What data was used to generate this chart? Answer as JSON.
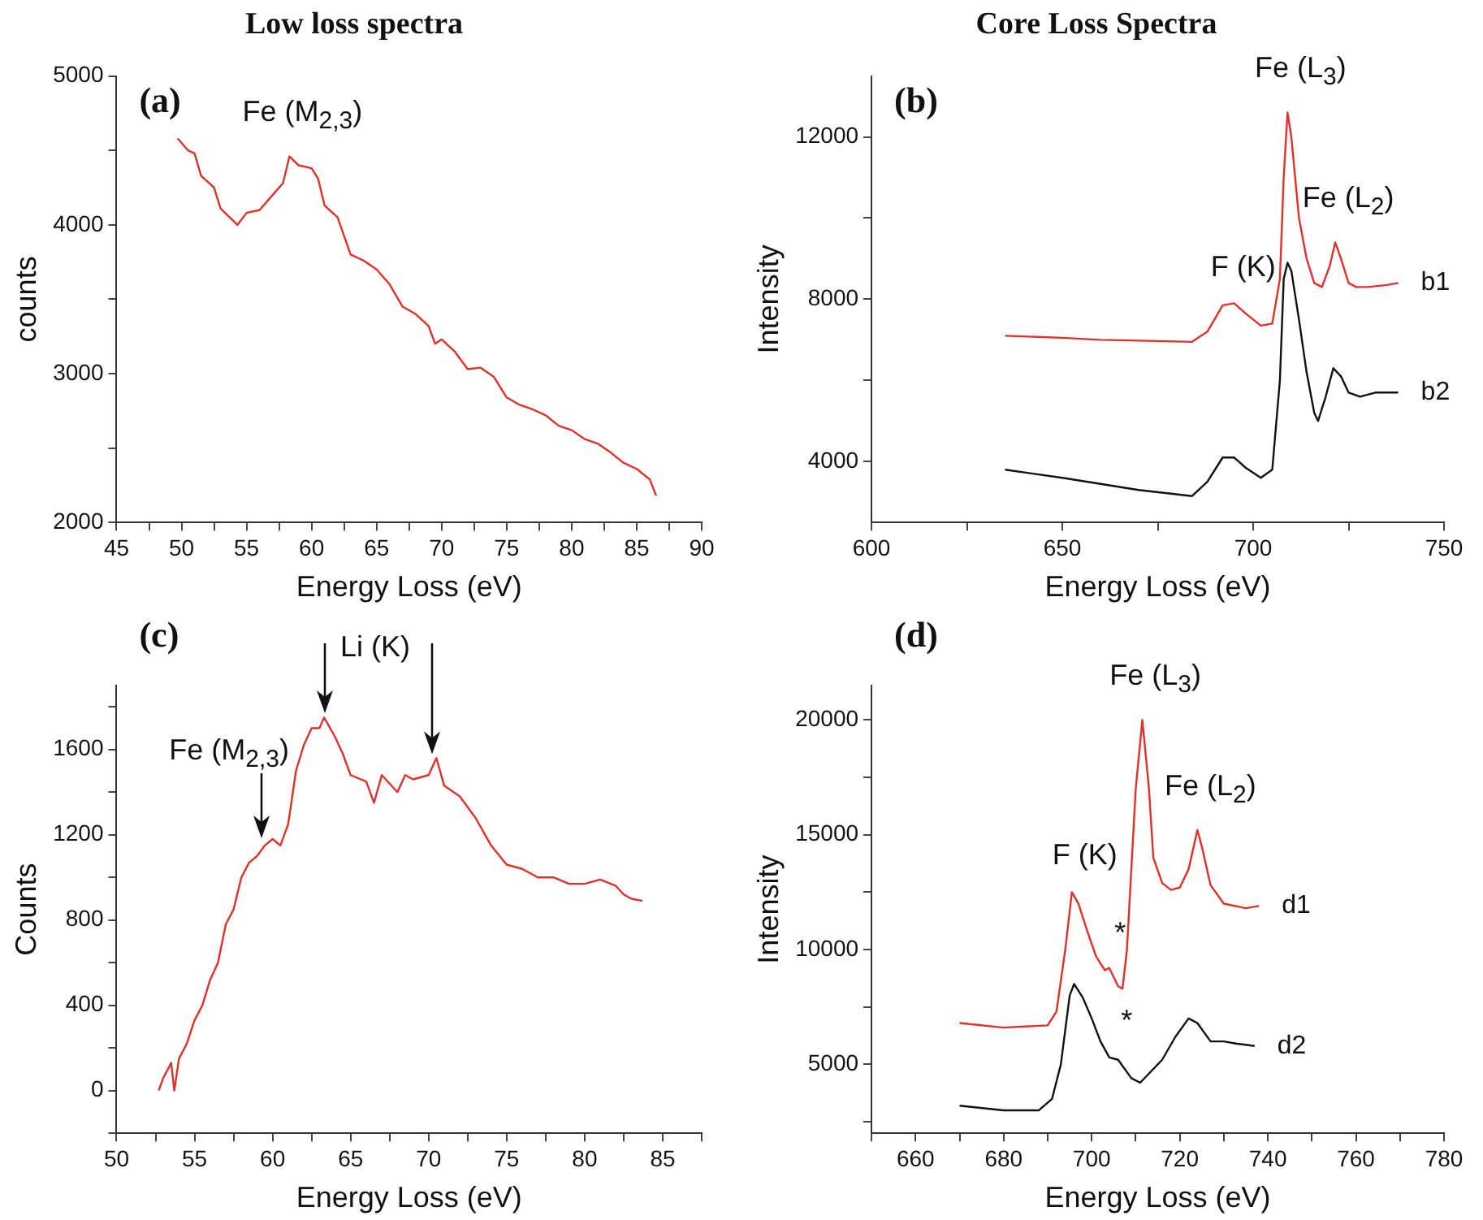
{
  "chart_data": [
    {
      "type": "line",
      "title": "Low loss spectra",
      "xlabel": "Energy Loss (eV)",
      "ylabel": "counts",
      "marker": "none",
      "line_style": "solid",
      "annotations": [
        "(a)",
        {
          "text": "Fe (M$_{2,3}$)",
          "x": 58.3,
          "y": 4460
        }
      ],
      "xlim": [
        45,
        90
      ],
      "xticks": [
        45,
        {
          "value": 47.5,
          "label": null
        },
        50,
        {
          "value": 52.5,
          "label": null
        },
        55,
        {
          "value": 57.5,
          "label": null
        },
        60,
        {
          "value": 62.5,
          "label": null
        },
        65,
        {
          "value": 67.5,
          "label": null
        },
        70,
        {
          "value": 72.5,
          "label": null
        },
        75,
        {
          "value": 77.5,
          "label": null
        },
        80,
        {
          "value": 82.5,
          "label": null
        },
        85,
        {
          "value": 87.5,
          "label": null
        },
        90
      ],
      "ylim": [
        2000,
        5000
      ],
      "yticks": [
        2000,
        {
          "value": 2500,
          "label": null
        },
        3000,
        {
          "value": 3500,
          "label": null
        },
        4000,
        {
          "value": 4500,
          "label": null
        },
        5000
      ],
      "series": [
        {
          "color": "#e0302a",
          "x": [
            49.7,
            50.5,
            51,
            51.5,
            52.5,
            53,
            54.3,
            55,
            56,
            57,
            57.8,
            58.3,
            59,
            60,
            60.5,
            61,
            62,
            63,
            64,
            65,
            66,
            67,
            68,
            69,
            69.5,
            70,
            71,
            72,
            73,
            74,
            75,
            76,
            77,
            78,
            79,
            80,
            81,
            82,
            83,
            84,
            85,
            86,
            86.5
          ],
          "values": [
            4580,
            4500,
            4480,
            4330,
            4250,
            4110,
            4000,
            4080,
            4100,
            4200,
            4280,
            4460,
            4400,
            4380,
            4310,
            4130,
            4050,
            3800,
            3760,
            3700,
            3600,
            3450,
            3400,
            3320,
            3200,
            3230,
            3150,
            3030,
            3040,
            2980,
            2840,
            2790,
            2760,
            2720,
            2650,
            2620,
            2560,
            2530,
            2470,
            2400,
            2360,
            2290,
            2180
          ]
        }
      ]
    },
    {
      "type": "line",
      "title": "Core Loss Spectra",
      "xlabel": "Energy Loss (eV)",
      "ylabel": "Intensity",
      "marker": "none",
      "line_style": "solid",
      "annotations": [
        "(b)",
        {
          "text": "F (K)",
          "x": 694,
          "y": 7900
        },
        {
          "text": "Fe (L$_{3}$)",
          "x": 709,
          "y": 12600
        },
        {
          "text": "Fe (L$_{2}$)",
          "x": 721.5,
          "y": 9400
        }
      ],
      "xlim": [
        600,
        750
      ],
      "xticks": [
        600,
        {
          "value": 625,
          "label": null
        },
        650,
        {
          "value": 675,
          "label": null
        },
        700,
        {
          "value": 725,
          "label": null
        },
        750
      ],
      "ylim": [
        2500,
        13500
      ],
      "yticks": [
        4000,
        {
          "value": 6000,
          "label": null
        },
        8000,
        {
          "value": 10000,
          "label": null
        },
        12000
      ],
      "series": [
        {
          "name": "b1",
          "color": "#e0302a",
          "x": [
            635,
            650,
            660,
            670,
            684,
            688,
            692,
            695,
            698,
            702,
            705,
            707,
            708,
            709,
            710,
            712,
            714,
            716,
            718,
            720,
            721.5,
            723,
            725,
            727,
            730,
            735,
            738
          ],
          "values": [
            7100,
            7050,
            7000,
            6980,
            6950,
            7200,
            7850,
            7900,
            7650,
            7350,
            7400,
            8500,
            11000,
            12600,
            12000,
            10000,
            9000,
            8400,
            8300,
            8800,
            9400,
            9000,
            8400,
            8300,
            8300,
            8350,
            8400
          ]
        },
        {
          "name": "b2",
          "color": "#111111",
          "x": [
            635,
            650,
            660,
            670,
            684,
            688,
            692,
            695,
            698,
            702,
            705,
            707,
            708,
            709,
            710,
            712,
            714,
            716,
            717,
            719,
            721,
            723,
            725,
            728,
            732,
            738
          ],
          "values": [
            3800,
            3600,
            3450,
            3300,
            3150,
            3500,
            4100,
            4100,
            3850,
            3600,
            3800,
            6000,
            8500,
            8900,
            8700,
            7500,
            6200,
            5200,
            5000,
            5600,
            6300,
            6100,
            5700,
            5600,
            5700,
            5700
          ]
        }
      ]
    },
    {
      "type": "line",
      "xlabel": "Energy Loss (eV)",
      "ylabel": "Counts",
      "marker": "none",
      "line_style": "solid",
      "annotations": [
        "(c)",
        {
          "text": "Fe (M$_{2,3}$)",
          "x": 59.3,
          "y": 1150
        },
        {
          "text": "Li (K)",
          "x": 63.3,
          "y": 1750
        }
      ],
      "xlim": [
        50,
        87.5
      ],
      "xticks": [
        50,
        {
          "value": 52.5,
          "label": null
        },
        55,
        {
          "value": 57.5,
          "label": null
        },
        60,
        {
          "value": 62.5,
          "label": null
        },
        65,
        {
          "value": 67.5,
          "label": null
        },
        70,
        {
          "value": 72.5,
          "label": null
        },
        75,
        {
          "value": 77.5,
          "label": null
        },
        80,
        {
          "value": 82.5,
          "label": null
        },
        85,
        {
          "value": 87.5,
          "label": null
        }
      ],
      "ylim": [
        -200,
        1900
      ],
      "yticks": [
        {
          "value": -200,
          "label": null
        },
        0,
        {
          "value": 200,
          "label": null
        },
        400,
        {
          "value": 600,
          "label": null
        },
        800,
        {
          "value": 1000,
          "label": null
        },
        1200,
        {
          "value": 1400,
          "label": null
        },
        1600,
        {
          "value": 1800,
          "label": null
        }
      ],
      "series": [
        {
          "color": "#e0302a",
          "x": [
            52.7,
            53,
            53.5,
            53.7,
            54,
            54.5,
            55,
            55.5,
            56,
            56.5,
            57,
            57.5,
            58,
            58.5,
            59,
            59.5,
            60,
            60.5,
            61,
            61.5,
            62,
            62.5,
            63,
            63.3,
            64,
            64.5,
            65,
            66,
            66.5,
            67,
            68,
            68.5,
            69,
            70,
            70.5,
            71,
            72,
            73,
            74,
            75,
            76,
            77,
            78,
            79,
            80,
            81,
            82,
            82.5,
            83,
            83.7
          ],
          "values": [
            0,
            60,
            130,
            0,
            150,
            220,
            330,
            400,
            520,
            600,
            780,
            850,
            1000,
            1070,
            1100,
            1150,
            1180,
            1150,
            1250,
            1500,
            1620,
            1700,
            1700,
            1750,
            1660,
            1580,
            1480,
            1450,
            1350,
            1480,
            1400,
            1480,
            1460,
            1480,
            1560,
            1430,
            1380,
            1280,
            1150,
            1060,
            1040,
            1000,
            1000,
            970,
            970,
            990,
            960,
            920,
            900,
            890
          ]
        }
      ]
    },
    {
      "type": "line",
      "xlabel": "Energy Loss (eV)",
      "ylabel": "Intensity",
      "marker": "none",
      "line_style": "solid",
      "annotations": [
        "(d)",
        {
          "text": "F (K)",
          "x": 695.5,
          "y": 12500
        },
        {
          "text": "Fe (L$_{3}$)",
          "x": 711.5,
          "y": 20000
        },
        {
          "text": "Fe (L$_{2}$)",
          "x": 724,
          "y": 15200
        },
        {
          "text": "*",
          "x": 703.5,
          "y": 9100
        },
        {
          "text": "*",
          "x": 705,
          "y": 5300
        }
      ],
      "xlim": [
        650,
        780
      ],
      "xticks": [
        {
          "value": 650,
          "label": null
        },
        660,
        {
          "value": 670,
          "label": null
        },
        680,
        {
          "value": 690,
          "label": null
        },
        700,
        {
          "value": 710,
          "label": null
        },
        720,
        {
          "value": 730,
          "label": null
        },
        740,
        {
          "value": 750,
          "label": null
        },
        760,
        {
          "value": 770,
          "label": null
        },
        780
      ],
      "ylim": [
        2000,
        21500
      ],
      "yticks": [
        {
          "value": 2500,
          "label": null
        },
        5000,
        {
          "value": 7500,
          "label": null
        },
        10000,
        {
          "value": 12500,
          "label": null
        },
        15000,
        {
          "value": 17500,
          "label": null
        },
        20000
      ],
      "series": [
        {
          "name": "d1",
          "color": "#e0302a",
          "x": [
            670,
            680,
            690,
            692,
            694,
            695.5,
            697,
            699,
            701,
            703,
            704,
            706,
            707,
            708,
            710,
            711.5,
            713,
            714,
            716,
            718,
            720,
            722,
            724,
            725,
            727,
            730,
            735,
            738
          ],
          "values": [
            6800,
            6600,
            6700,
            7300,
            10000,
            12500,
            12000,
            10800,
            9700,
            9100,
            9200,
            8400,
            8300,
            10000,
            17000,
            20000,
            17000,
            14000,
            12900,
            12600,
            12700,
            13500,
            15200,
            14500,
            12800,
            12000,
            11800,
            11900
          ]
        },
        {
          "name": "d2",
          "color": "#111111",
          "x": [
            670,
            680,
            688,
            691,
            693,
            695,
            696,
            698,
            700,
            702,
            704,
            706,
            709,
            711,
            713,
            716,
            719,
            722,
            724,
            727,
            730,
            733,
            737
          ],
          "values": [
            3200,
            3000,
            3000,
            3500,
            5000,
            8000,
            8500,
            7900,
            7000,
            6000,
            5300,
            5200,
            4400,
            4200,
            4600,
            5200,
            6200,
            7000,
            6800,
            6000,
            6000,
            5900,
            5800
          ]
        }
      ]
    }
  ]
}
